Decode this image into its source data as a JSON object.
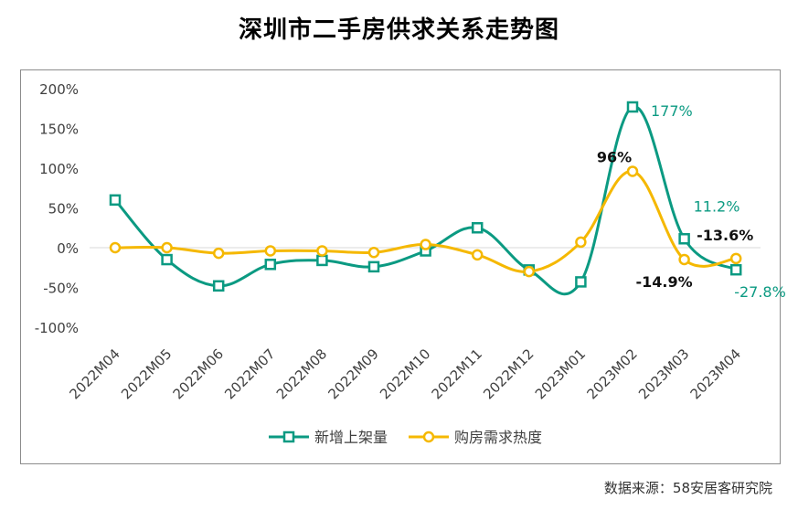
{
  "title": "深圳市二手房供求关系走势图",
  "source": "数据来源：58安居客研究院",
  "chart_data": {
    "type": "line",
    "title": "深圳市二手房供求关系走势图",
    "categories": [
      "2022M04",
      "2022M05",
      "2022M06",
      "2022M07",
      "2022M08",
      "2022M09",
      "2022M10",
      "2022M11",
      "2022M12",
      "2023M01",
      "2023M02",
      "2023M03",
      "2023M04"
    ],
    "yticks": [
      "200%",
      "150%",
      "100%",
      "50%",
      "0%",
      "-50%",
      "-100%"
    ],
    "ylim": [
      -100,
      200
    ],
    "legend_position": "bottom",
    "series": [
      {
        "name": "新增上架量",
        "color": "#0b9a82",
        "marker": "square",
        "values": [
          60,
          -15,
          -48,
          -21,
          -16,
          -24,
          -4,
          25,
          -28,
          -43,
          177,
          11.2,
          -27.8
        ],
        "labels": [
          null,
          null,
          null,
          null,
          null,
          null,
          null,
          null,
          null,
          null,
          "177%",
          "11.2%",
          "-27.8%"
        ]
      },
      {
        "name": "购房需求热度",
        "color": "#f5b800",
        "marker": "circle",
        "values": [
          0,
          0,
          -7,
          -4,
          -4,
          -6,
          4,
          -9,
          -30,
          7,
          96,
          -14.9,
          -13.6
        ],
        "labels": [
          null,
          null,
          null,
          null,
          null,
          null,
          null,
          null,
          null,
          null,
          "96%",
          "-14.9%",
          "-13.6%"
        ]
      }
    ]
  }
}
